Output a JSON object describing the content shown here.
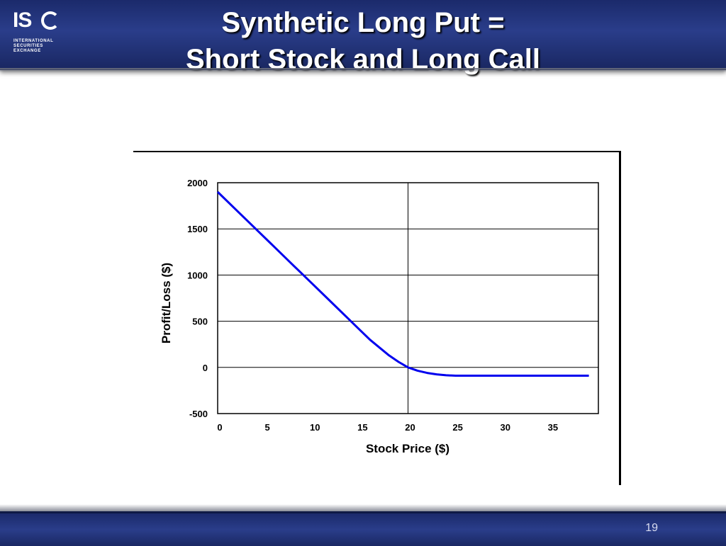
{
  "header": {
    "logo_text": "IS",
    "logo_lines": [
      "INTERNATIONAL",
      "SECURITIES",
      "EXCHANGE"
    ],
    "title_line1": "Synthetic Long Put =",
    "title_line2": "Short Stock and Long Call"
  },
  "footer": {
    "page_number": "19"
  },
  "colors": {
    "header_bg": "#23357a",
    "line": "#0000ee",
    "grid": "#000000"
  },
  "chart_data": {
    "type": "line",
    "title": "",
    "xlabel": "Stock Price ($)",
    "ylabel": "Profit/Loss ($)",
    "xlim": [
      0,
      40
    ],
    "ylim": [
      -500,
      2000
    ],
    "x_ticks": [
      0,
      5,
      10,
      15,
      20,
      25,
      30,
      35
    ],
    "y_ticks": [
      2000,
      1500,
      1000,
      500,
      0,
      -500
    ],
    "grid": true,
    "legend": "none",
    "series": [
      {
        "x": [
          0,
          2,
          4,
          6,
          8,
          10,
          12,
          14,
          16,
          18,
          19,
          20,
          21,
          22,
          23,
          24,
          25,
          30,
          35,
          39
        ],
        "values": [
          1900,
          1700,
          1500,
          1300,
          1100,
          900,
          700,
          500,
          300,
          130,
          60,
          0,
          -35,
          -60,
          -75,
          -85,
          -90,
          -90,
          -90,
          -90
        ]
      }
    ]
  }
}
